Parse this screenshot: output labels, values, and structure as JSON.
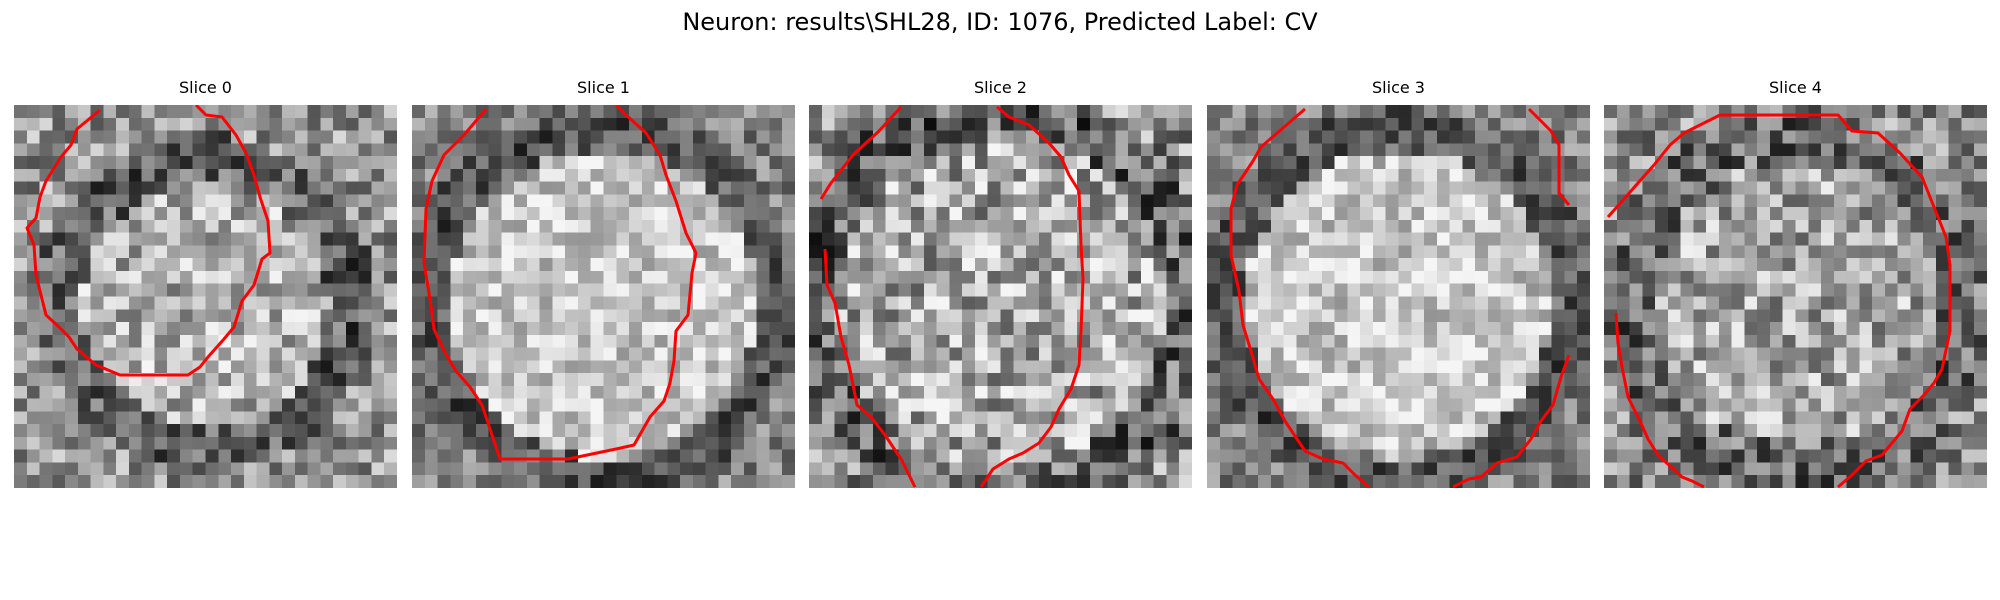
{
  "figure": {
    "title": "Neuron: results\\SHL28, ID: 1076, Predicted Label: CV"
  },
  "slices": [
    {
      "title": "Slice 0",
      "variant": "dark-ring",
      "contour": "red-outline"
    },
    {
      "title": "Slice 1",
      "variant": "bright-centre",
      "contour": "red-outline"
    },
    {
      "title": "Slice 2",
      "variant": "mottled",
      "contour": "red-outline"
    },
    {
      "title": "Slice 3",
      "variant": "bright-centre",
      "contour": "red-outline"
    },
    {
      "title": "Slice 4",
      "variant": "dark-spots",
      "contour": "red-outline"
    }
  ],
  "colors": {
    "contour": "#ff0000",
    "background": "#ffffff",
    "text": "#000000"
  }
}
